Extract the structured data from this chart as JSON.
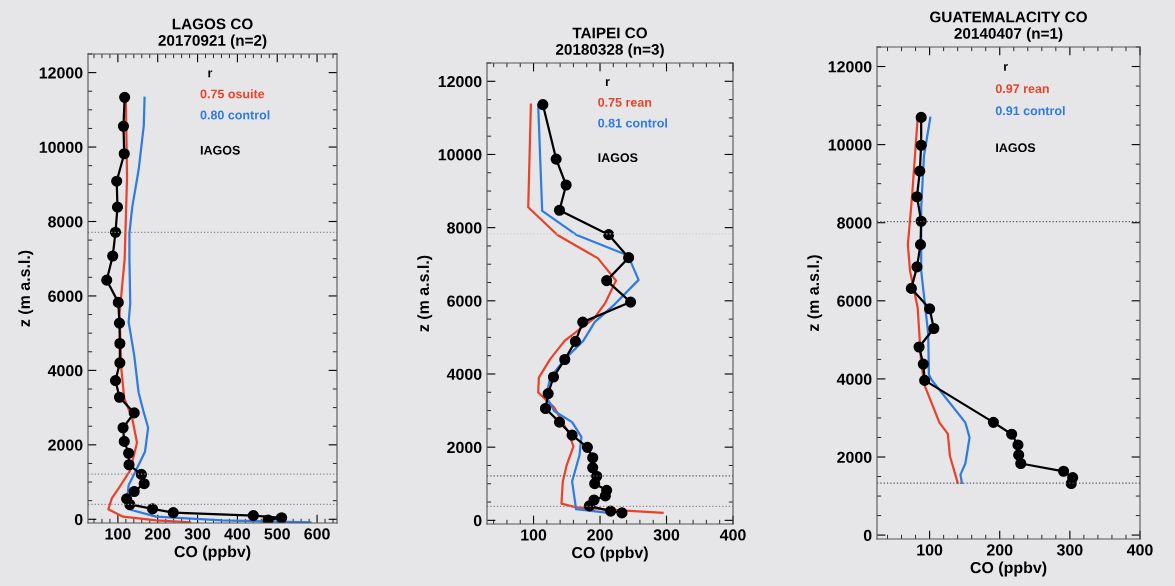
{
  "chart_data": [
    {
      "type": "line",
      "title": "LAGOS CO\n20170921 (n=2)",
      "xlabel": "CO (ppbv)",
      "ylabel": "z (m a.s.l.)",
      "legend_title": "r",
      "legend": "top right",
      "grid": false,
      "xlim": [
        25,
        650
      ],
      "xticks": [
        100,
        200,
        300,
        400,
        500,
        600
      ],
      "ylim": [
        -100,
        12500
      ],
      "yticks": [
        0,
        2000,
        4000,
        6000,
        8000,
        10000,
        12000
      ],
      "ref_lines": [
        {
          "axis": "y",
          "value": 7710,
          "line_style": "dotted",
          "color": "#888888"
        },
        {
          "axis": "y",
          "value": 1215,
          "line_style": "dotted",
          "color": "#888888"
        },
        {
          "axis": "y",
          "value": 398,
          "line_style": "dotted",
          "color": "#888888"
        }
      ],
      "series": [
        {
          "name": "0.75 osuite",
          "color": "#e8432a",
          "marker": "none",
          "x": [
            120,
            123,
            117,
            104,
            109,
            116,
            136,
            148,
            131,
            104,
            85,
            76,
            113,
            196,
            281
          ],
          "values": [
            11325,
            9183,
            6992,
            5498,
            4004,
            3257,
            2709,
            2062,
            1315,
            867,
            568,
            269,
            70,
            -30,
            -80
          ]
        },
        {
          "name": "0.80 control",
          "color": "#2f7be0",
          "marker": "none",
          "x": [
            167,
            165,
            152,
            136,
            129,
            129,
            131,
            127,
            141,
            152,
            164,
            176,
            168,
            141,
            127,
            124,
            127,
            196,
            362,
            583
          ],
          "values": [
            11325,
            10578,
            9382,
            8386,
            7689,
            6992,
            5797,
            5299,
            4402,
            3406,
            2908,
            2460,
            1813,
            1215,
            916,
            618,
            269,
            70,
            -30,
            -80
          ]
        },
        {
          "name": "IAGOS",
          "color": "#000000",
          "marker": "circle",
          "x": [
            117,
            114,
            116,
            97,
            99,
            94,
            87,
            72,
            101,
            104,
            105,
            105,
            94,
            104,
            141,
            113,
            116,
            127,
            128,
            159,
            166,
            141,
            122,
            130,
            187,
            239,
            440,
            511,
            477
          ],
          "values": [
            11335,
            10560,
            9820,
            9083,
            8386,
            7710,
            7072,
            6424,
            5827,
            5269,
            4721,
            4203,
            3725,
            3277,
            2858,
            2460,
            2092,
            1773,
            1464,
            1205,
            956,
            747,
            548,
            398,
            279,
            179,
            100,
            40,
            -20
          ]
        }
      ]
    },
    {
      "type": "line",
      "title": "TAIPEI CO\n20180328 (n=3)",
      "xlabel": "CO (ppbv)",
      "ylabel": "z (m a.s.l.)",
      "legend_title": "r",
      "legend": "top right",
      "grid": false,
      "xlim": [
        30,
        400
      ],
      "xticks": [
        100,
        200,
        300,
        400
      ],
      "ylim": [
        -100,
        12500
      ],
      "yticks": [
        0,
        2000,
        4000,
        6000,
        8000,
        10000,
        12000
      ],
      "ref_lines": [
        {
          "axis": "y",
          "value": 7828,
          "line_style": "dotted",
          "color": "#cccccc"
        },
        {
          "axis": "y",
          "value": 1215,
          "line_style": "dotted",
          "color": "#555555"
        },
        {
          "axis": "y",
          "value": 385,
          "line_style": "dotted",
          "color": "#888888"
        }
      ],
      "series": [
        {
          "name": "0.75 rean",
          "color": "#e8432a",
          "marker": "none",
          "x": [
            96,
            92,
            136,
            197,
            224,
            208,
            191,
            147,
            125,
            108,
            107,
            131,
            153,
            160,
            150,
            144,
            142,
            164,
            219,
            294
          ],
          "values": [
            11363,
            8557,
            7798,
            7160,
            6552,
            5945,
            5519,
            4911,
            4405,
            3899,
            3494,
            3089,
            2380,
            2025,
            1519,
            1063,
            456,
            354,
            284,
            203
          ]
        },
        {
          "name": "0.81 control",
          "color": "#2f7be0",
          "marker": "none",
          "x": [
            107,
            113,
            164,
            242,
            258,
            222,
            192,
            175,
            147,
            125,
            119,
            131,
            158,
            172,
            169,
            158,
            164,
            214
          ],
          "values": [
            11342,
            8456,
            7808,
            7241,
            6572,
            5904,
            5418,
            4911,
            4405,
            3899,
            3393,
            2987,
            2684,
            2279,
            1772,
            1063,
            304,
            203
          ]
        },
        {
          "name": "IAGOS",
          "color": "#000000",
          "marker": "circle",
          "x": [
            114,
            134,
            149,
            139,
            213,
            243,
            210,
            246,
            174,
            163,
            147,
            130,
            122,
            118,
            139,
            158,
            181,
            189,
            189,
            195,
            192,
            210,
            208,
            191,
            184,
            216,
            233
          ],
          "values": [
            11363,
            9874,
            9165,
            8476,
            7808,
            7180,
            6552,
            5965,
            5418,
            4891,
            4395,
            3919,
            3463,
            3058,
            2684,
            2329,
            1995,
            1711,
            1438,
            1205,
            1003,
            820,
            668,
            557,
            395,
            253,
            203
          ]
        }
      ]
    },
    {
      "type": "line",
      "title": "GUATEMALACITY CO\n20140407 (n=1)",
      "xlabel": "CO (ppbv)",
      "ylabel": "z (m a.s.l.)",
      "legend_title": "r",
      "legend": "top right",
      "grid": false,
      "xlim": [
        25,
        400
      ],
      "xticks": [
        100,
        200,
        300,
        400
      ],
      "ylim": [
        -100,
        12500
      ],
      "yticks": [
        0,
        2000,
        4000,
        6000,
        8000,
        10000,
        12000
      ],
      "ref_lines": [
        {
          "axis": "y",
          "value": 8027,
          "line_style": "dotted",
          "color": "#555555"
        },
        {
          "axis": "y",
          "value": 1330,
          "line_style": "dotted",
          "color": "#555555"
        }
      ],
      "series": [
        {
          "name": "0.97 rean",
          "color": "#e8432a",
          "marker": "none",
          "x": [
            83,
            75,
            69,
            72,
            83,
            88,
            93,
            114,
            126,
            129,
            140
          ],
          "values": [
            10688,
            8674,
            7439,
            6774,
            5824,
            4399,
            3829,
            2879,
            2594,
            2024,
            1340
          ]
        },
        {
          "name": "0.91 control",
          "color": "#2f7be0",
          "marker": "none",
          "x": [
            101,
            92,
            88,
            88,
            98,
            99,
            103,
            151,
            157,
            151,
            144,
            146
          ],
          "values": [
            10688,
            9719,
            8389,
            6774,
            5159,
            4114,
            3971,
            2879,
            2499,
            1834,
            1549,
            1340
          ]
        },
        {
          "name": "IAGOS",
          "color": "#000000",
          "marker": "circle",
          "x": [
            88,
            88,
            86,
            82,
            88,
            87,
            82,
            74,
            100,
            106,
            85,
            91,
            93,
            191,
            217,
            226,
            227,
            230,
            291,
            304,
            302
          ],
          "values": [
            10697,
            9985,
            9320,
            8664,
            8037,
            7439,
            6869,
            6318,
            5795,
            5292,
            4817,
            4380,
            3962,
            2888,
            2584,
            2309,
            2052,
            1834,
            1634,
            1473,
            1321
          ]
        }
      ]
    }
  ]
}
